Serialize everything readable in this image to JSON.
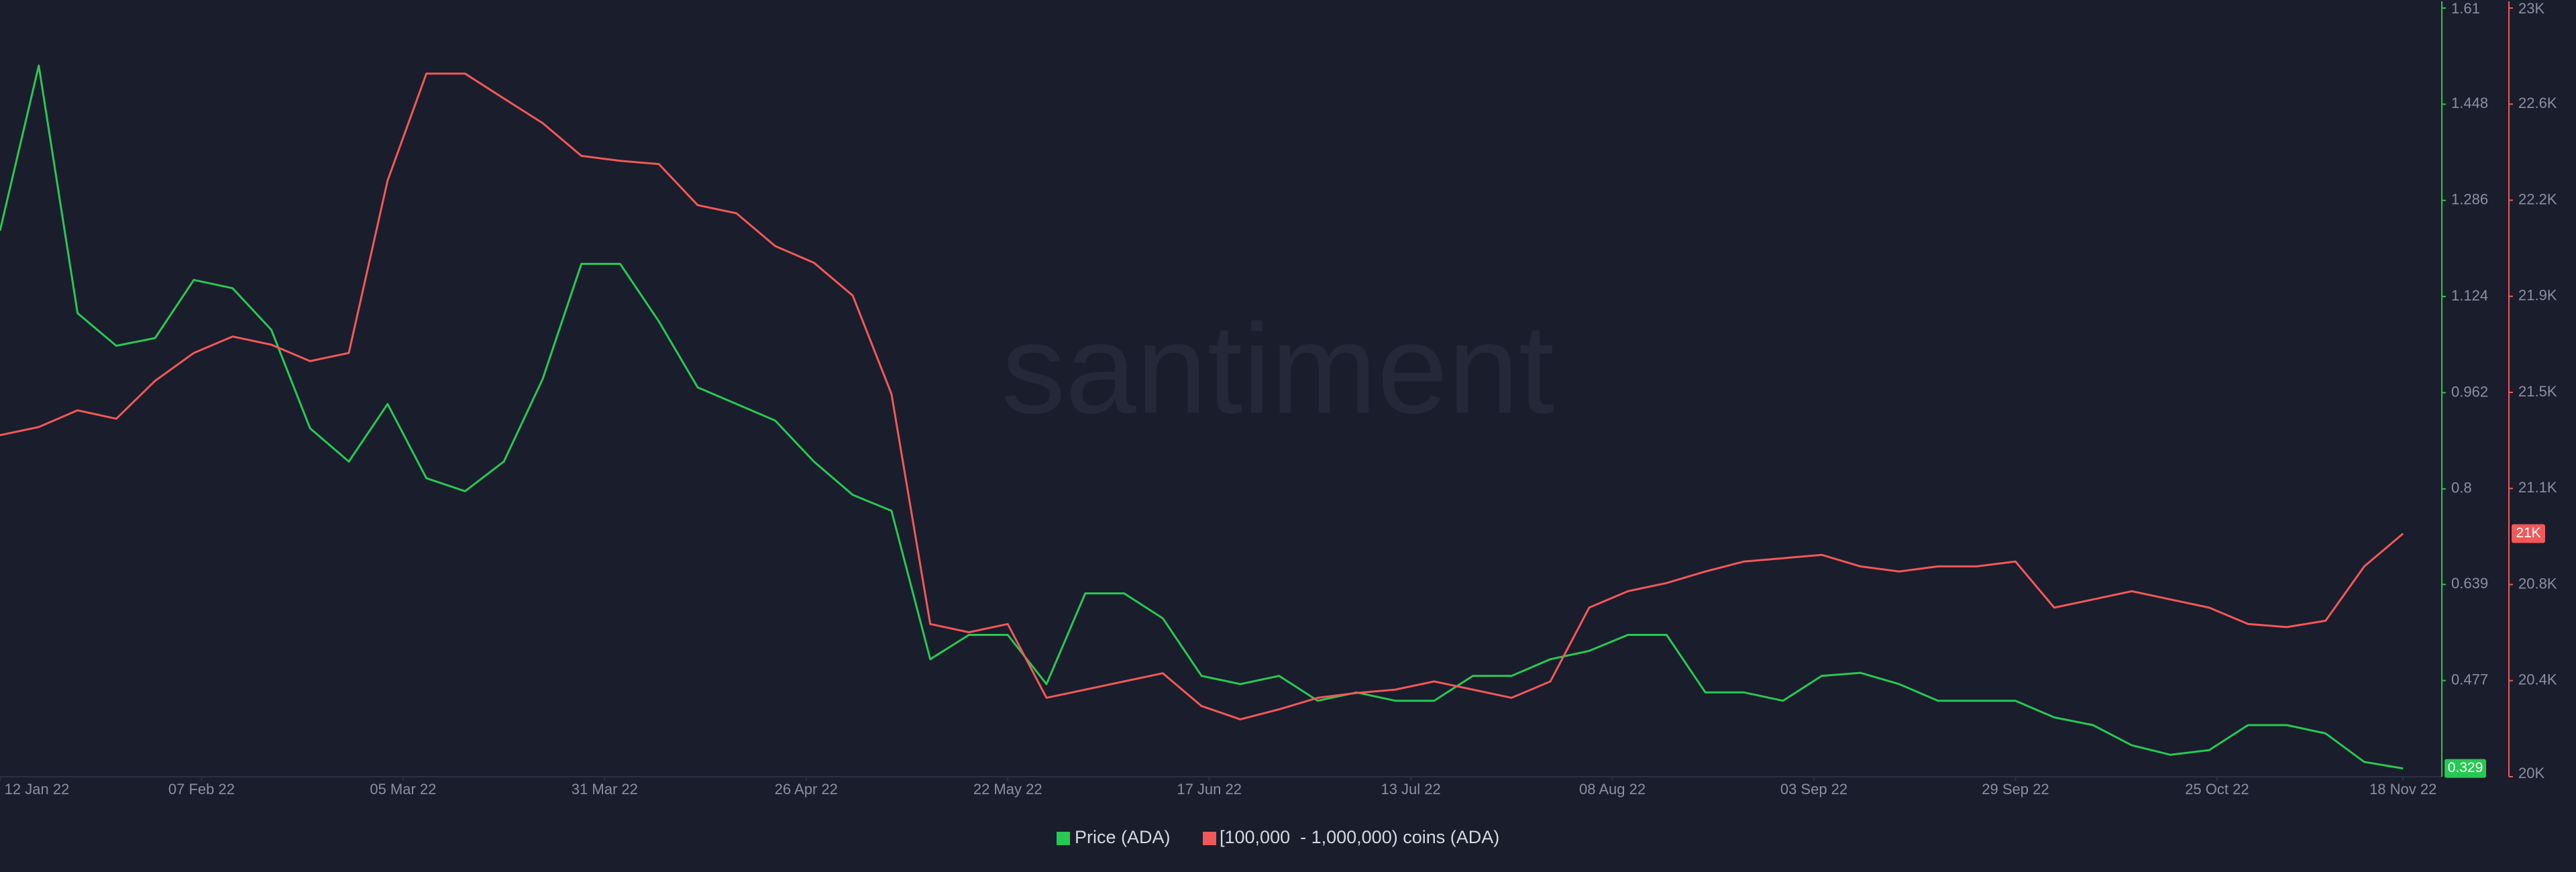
{
  "chart_data": {
    "type": "line",
    "watermark": "santiment",
    "x": [
      "2022-01-12",
      "2022-01-17",
      "2022-01-22",
      "2022-01-27",
      "2022-02-01",
      "2022-02-06",
      "2022-02-11",
      "2022-02-16",
      "2022-02-21",
      "2022-02-26",
      "2022-03-03",
      "2022-03-08",
      "2022-03-13",
      "2022-03-18",
      "2022-03-23",
      "2022-03-28",
      "2022-04-02",
      "2022-04-07",
      "2022-04-12",
      "2022-04-17",
      "2022-04-22",
      "2022-04-27",
      "2022-05-02",
      "2022-05-07",
      "2022-05-12",
      "2022-05-17",
      "2022-05-22",
      "2022-05-27",
      "2022-06-01",
      "2022-06-06",
      "2022-06-11",
      "2022-06-16",
      "2022-06-21",
      "2022-06-26",
      "2022-07-01",
      "2022-07-06",
      "2022-07-11",
      "2022-07-16",
      "2022-07-21",
      "2022-07-26",
      "2022-07-31",
      "2022-08-05",
      "2022-08-10",
      "2022-08-15",
      "2022-08-20",
      "2022-08-25",
      "2022-08-30",
      "2022-09-04",
      "2022-09-09",
      "2022-09-14",
      "2022-09-19",
      "2022-09-24",
      "2022-09-29",
      "2022-10-04",
      "2022-10-09",
      "2022-10-14",
      "2022-10-19",
      "2022-10-24",
      "2022-10-29",
      "2022-11-03",
      "2022-11-08",
      "2022-11-13",
      "2022-11-18"
    ],
    "xlim": [
      "2022-01-12",
      "2022-11-23"
    ],
    "xticks": [
      {
        "value": "2022-01-12",
        "label": "12 Jan 22"
      },
      {
        "value": "2022-02-07",
        "label": "07 Feb 22"
      },
      {
        "value": "2022-03-05",
        "label": "05 Mar 22"
      },
      {
        "value": "2022-03-31",
        "label": "31 Mar 22"
      },
      {
        "value": "2022-04-26",
        "label": "26 Apr 22"
      },
      {
        "value": "2022-05-22",
        "label": "22 May 22"
      },
      {
        "value": "2022-06-17",
        "label": "17 Jun 22"
      },
      {
        "value": "2022-07-13",
        "label": "13 Jul 22"
      },
      {
        "value": "2022-08-08",
        "label": "08 Aug 22"
      },
      {
        "value": "2022-09-03",
        "label": "03 Sep 22"
      },
      {
        "value": "2022-09-29",
        "label": "29 Sep 22"
      },
      {
        "value": "2022-10-25",
        "label": "25 Oct 22"
      },
      {
        "value": "2022-11-18",
        "label": "18 Nov 22"
      }
    ],
    "ylim": [
      0.315,
      1.61
    ],
    "yticks": [
      0.477,
      0.639,
      0.8,
      0.962,
      1.124,
      1.286,
      1.448,
      1.61
    ],
    "y2lim": [
      20000,
      23000
    ],
    "y2ticks": [
      {
        "value": 20000,
        "label": "20K"
      },
      {
        "value": 20375,
        "label": "20.4K"
      },
      {
        "value": 20750,
        "label": "20.8K"
      },
      {
        "value": 21125,
        "label": "21.1K"
      },
      {
        "value": 21500,
        "label": "21.5K"
      },
      {
        "value": 21875,
        "label": "21.9K"
      },
      {
        "value": 22250,
        "label": "22.2K"
      },
      {
        "value": 22625,
        "label": "22.6K"
      },
      {
        "value": 23000,
        "label": "23K"
      }
    ],
    "grid": false,
    "series": [
      {
        "name": "Price (ADA)",
        "color": "#26c953",
        "axis": "y",
        "values": [
          1.235,
          1.513,
          1.096,
          1.041,
          1.054,
          1.152,
          1.138,
          1.068,
          0.902,
          0.846,
          0.943,
          0.818,
          0.796,
          0.846,
          0.985,
          1.179,
          1.179,
          1.082,
          0.971,
          0.943,
          0.915,
          0.846,
          0.79,
          0.763,
          0.513,
          0.554,
          0.554,
          0.471,
          0.624,
          0.624,
          0.582,
          0.485,
          0.471,
          0.485,
          0.443,
          0.457,
          0.443,
          0.443,
          0.485,
          0.485,
          0.513,
          0.527,
          0.554,
          0.554,
          0.457,
          0.457,
          0.443,
          0.485,
          0.49,
          0.471,
          0.443,
          0.443,
          0.443,
          0.415,
          0.402,
          0.368,
          0.352,
          0.36,
          0.402,
          0.402,
          0.388,
          0.34,
          0.329
        ]
      },
      {
        "name": "[100,000  - 1,000,000) coins (ADA)",
        "color": "#f25858",
        "axis": "y2",
        "values": [
          21333,
          21365,
          21430,
          21397,
          21545,
          21654,
          21718,
          21686,
          21622,
          21654,
          22327,
          22744,
          22744,
          22647,
          22551,
          22423,
          22404,
          22391,
          22231,
          22199,
          22071,
          22006,
          21878,
          21494,
          20596,
          20564,
          20596,
          20308,
          20340,
          20372,
          20404,
          20276,
          20224,
          20263,
          20308,
          20327,
          20340,
          20372,
          20340,
          20308,
          20372,
          20660,
          20724,
          20756,
          20801,
          20840,
          20853,
          20866,
          20821,
          20801,
          20821,
          20821,
          20840,
          20660,
          20692,
          20724,
          20692,
          20660,
          20596,
          20584,
          20609,
          20821,
          20949
        ],
        "value_labels": [
          null,
          null,
          null,
          null,
          null,
          null,
          null,
          null,
          null,
          null,
          null,
          null,
          null,
          null,
          null,
          null,
          null,
          null,
          null,
          null,
          null,
          null,
          null,
          null,
          null,
          null,
          null,
          null,
          null,
          null,
          null,
          null,
          null,
          null,
          null,
          null,
          null,
          null,
          null,
          null,
          null,
          null,
          null,
          null,
          null,
          null,
          null,
          null,
          null,
          null,
          null,
          null,
          null,
          null,
          null,
          null,
          null,
          null,
          null,
          null,
          null,
          null,
          "21K"
        ]
      }
    ]
  }
}
